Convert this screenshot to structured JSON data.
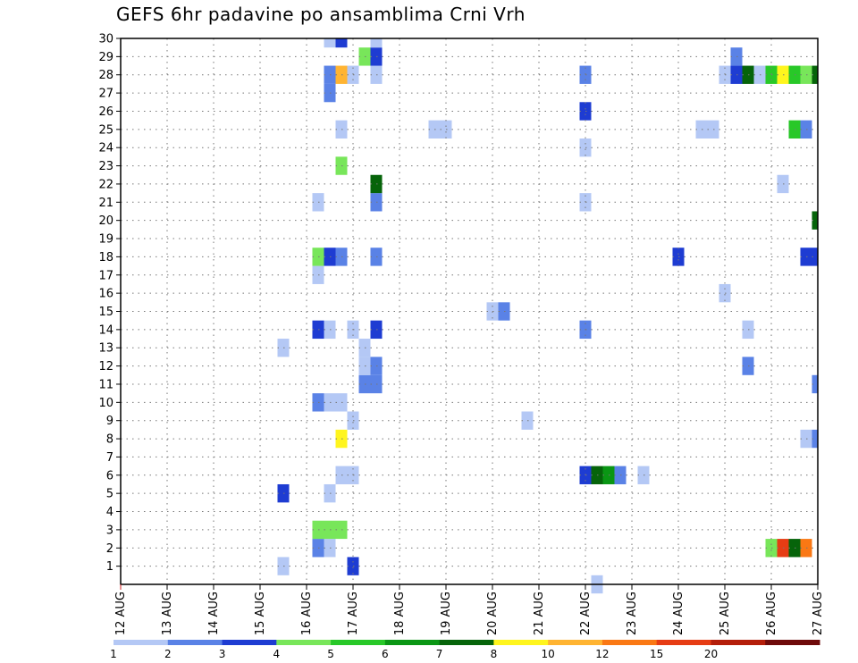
{
  "chart_data": {
    "type": "heatmap",
    "title": "GEFS 6hr padavine po ansamblima Crni Vrh",
    "xlabel": "",
    "ylabel": "",
    "x_ticks": [
      "12 AUG",
      "13 AUG",
      "14 AUG",
      "15 AUG",
      "16 AUG",
      "17 AUG",
      "18 AUG",
      "19 AUG",
      "20 AUG",
      "21 AUG",
      "22 AUG",
      "23 AUG",
      "24 AUG",
      "25 AUG",
      "26 AUG",
      "27 AUG"
    ],
    "y_ticks": [
      "1",
      "2",
      "3",
      "4",
      "5",
      "6",
      "7",
      "8",
      "9",
      "10",
      "11",
      "12",
      "13",
      "14",
      "15",
      "16",
      "17",
      "18",
      "19",
      "20",
      "21",
      "22",
      "23",
      "24",
      "25",
      "26",
      "27",
      "28",
      "29",
      "30"
    ],
    "xlim_days": [
      12,
      27
    ],
    "ylim": [
      0,
      30
    ],
    "grid": true,
    "colorbar": {
      "position": "bottom",
      "labels": [
        "1",
        "2",
        "3",
        "4",
        "5",
        "6",
        "7",
        "8",
        "10",
        "12",
        "15",
        "20"
      ],
      "colors": [
        "#b4c8f5",
        "#5a82e6",
        "#1e3cd2",
        "#78e65a",
        "#28c828",
        "#0a9614",
        "#06640a",
        "#fff51e",
        "#ffb432",
        "#fa7814",
        "#e63c14",
        "#b41e0a",
        "#6e0a0a"
      ]
    },
    "cells": [
      {
        "day": 15.5,
        "member": 1,
        "level": 1
      },
      {
        "day": 17.0,
        "member": 1,
        "level": 3
      },
      {
        "day": 16.25,
        "member": 2,
        "level": 2
      },
      {
        "day": 16.5,
        "member": 2,
        "level": 1
      },
      {
        "day": 26.0,
        "member": 2,
        "level": 4
      },
      {
        "day": 26.25,
        "member": 2,
        "level": 11
      },
      {
        "day": 26.5,
        "member": 2,
        "level": 7
      },
      {
        "day": 26.75,
        "member": 2,
        "level": 10
      },
      {
        "day": 16.25,
        "member": 3,
        "level": 4
      },
      {
        "day": 16.5,
        "member": 3,
        "level": 4
      },
      {
        "day": 16.75,
        "member": 3,
        "level": 4
      },
      {
        "day": 15.5,
        "member": 5,
        "level": 3
      },
      {
        "day": 16.5,
        "member": 5,
        "level": 1
      },
      {
        "day": 16.75,
        "member": 6,
        "level": 1
      },
      {
        "day": 17.0,
        "member": 6,
        "level": 1
      },
      {
        "day": 22.0,
        "member": 6,
        "level": 3
      },
      {
        "day": 22.25,
        "member": 6,
        "level": 7
      },
      {
        "day": 22.5,
        "member": 6,
        "level": 6
      },
      {
        "day": 22.75,
        "member": 6,
        "level": 2
      },
      {
        "day": 23.25,
        "member": 6,
        "level": 1
      },
      {
        "day": 16.75,
        "member": 8,
        "level": 8
      },
      {
        "day": 26.75,
        "member": 8,
        "level": 1
      },
      {
        "day": 27.0,
        "member": 8,
        "level": 2
      },
      {
        "day": 17.0,
        "member": 9,
        "level": 1
      },
      {
        "day": 20.75,
        "member": 9,
        "level": 1
      },
      {
        "day": 16.25,
        "member": 10,
        "level": 2
      },
      {
        "day": 16.5,
        "member": 10,
        "level": 1
      },
      {
        "day": 16.75,
        "member": 10,
        "level": 1
      },
      {
        "day": 17.25,
        "member": 11,
        "level": 2
      },
      {
        "day": 17.5,
        "member": 11,
        "level": 2
      },
      {
        "day": 27.0,
        "member": 11,
        "level": 2
      },
      {
        "day": 17.25,
        "member": 12,
        "level": 1
      },
      {
        "day": 17.5,
        "member": 12,
        "level": 2
      },
      {
        "day": 25.5,
        "member": 12,
        "level": 2
      },
      {
        "day": 15.5,
        "member": 13,
        "level": 1
      },
      {
        "day": 17.25,
        "member": 13,
        "level": 1
      },
      {
        "day": 16.25,
        "member": 14,
        "level": 3
      },
      {
        "day": 16.5,
        "member": 14,
        "level": 1
      },
      {
        "day": 17.0,
        "member": 14,
        "level": 1
      },
      {
        "day": 17.5,
        "member": 14,
        "level": 3
      },
      {
        "day": 22.0,
        "member": 14,
        "level": 2
      },
      {
        "day": 25.5,
        "member": 14,
        "level": 1
      },
      {
        "day": 20.0,
        "member": 15,
        "level": 1
      },
      {
        "day": 20.25,
        "member": 15,
        "level": 2
      },
      {
        "day": 25.0,
        "member": 16,
        "level": 1
      },
      {
        "day": 16.25,
        "member": 17,
        "level": 1
      },
      {
        "day": 16.25,
        "member": 18,
        "level": 4
      },
      {
        "day": 16.5,
        "member": 18,
        "level": 3
      },
      {
        "day": 16.75,
        "member": 18,
        "level": 2
      },
      {
        "day": 17.5,
        "member": 18,
        "level": 2
      },
      {
        "day": 24.0,
        "member": 18,
        "level": 3
      },
      {
        "day": 26.75,
        "member": 18,
        "level": 3
      },
      {
        "day": 27.0,
        "member": 18,
        "level": 3
      },
      {
        "day": 27.0,
        "member": 20,
        "level": 7
      },
      {
        "day": 16.25,
        "member": 21,
        "level": 1
      },
      {
        "day": 17.5,
        "member": 21,
        "level": 2
      },
      {
        "day": 22.0,
        "member": 21,
        "level": 1
      },
      {
        "day": 17.5,
        "member": 22,
        "level": 7
      },
      {
        "day": 26.25,
        "member": 22,
        "level": 1
      },
      {
        "day": 16.75,
        "member": 23,
        "level": 4
      },
      {
        "day": 22.0,
        "member": 24,
        "level": 1
      },
      {
        "day": 16.75,
        "member": 25,
        "level": 1
      },
      {
        "day": 18.75,
        "member": 25,
        "level": 1
      },
      {
        "day": 19.0,
        "member": 25,
        "level": 1
      },
      {
        "day": 24.5,
        "member": 25,
        "level": 1
      },
      {
        "day": 24.75,
        "member": 25,
        "level": 1
      },
      {
        "day": 26.5,
        "member": 25,
        "level": 5
      },
      {
        "day": 26.75,
        "member": 25,
        "level": 2
      },
      {
        "day": 22.0,
        "member": 26,
        "level": 3
      },
      {
        "day": 16.5,
        "member": 27,
        "level": 2
      },
      {
        "day": 16.5,
        "member": 28,
        "level": 2
      },
      {
        "day": 16.75,
        "member": 28,
        "level": 9
      },
      {
        "day": 17.0,
        "member": 28,
        "level": 1
      },
      {
        "day": 17.5,
        "member": 28,
        "level": 1
      },
      {
        "day": 22.0,
        "member": 28,
        "level": 2
      },
      {
        "day": 25.0,
        "member": 28,
        "level": 1
      },
      {
        "day": 25.25,
        "member": 28,
        "level": 3
      },
      {
        "day": 25.5,
        "member": 28,
        "level": 7
      },
      {
        "day": 25.75,
        "member": 28,
        "level": 1
      },
      {
        "day": 26.0,
        "member": 28,
        "level": 5
      },
      {
        "day": 26.25,
        "member": 28,
        "level": 8
      },
      {
        "day": 26.5,
        "member": 28,
        "level": 5
      },
      {
        "day": 26.75,
        "member": 28,
        "level": 4
      },
      {
        "day": 27.0,
        "member": 28,
        "level": 7
      },
      {
        "day": 27.25,
        "member": 28,
        "level": 4
      },
      {
        "day": 17.25,
        "member": 29,
        "level": 4
      },
      {
        "day": 17.5,
        "member": 29,
        "level": 3
      },
      {
        "day": 25.25,
        "member": 29,
        "level": 2
      },
      {
        "day": 16.5,
        "member": 30,
        "level": 1
      },
      {
        "day": 16.75,
        "member": 30,
        "level": 3
      },
      {
        "day": 17.5,
        "member": 30,
        "level": 1
      },
      {
        "day": 22.25,
        "member": 0,
        "level": 1
      }
    ]
  }
}
